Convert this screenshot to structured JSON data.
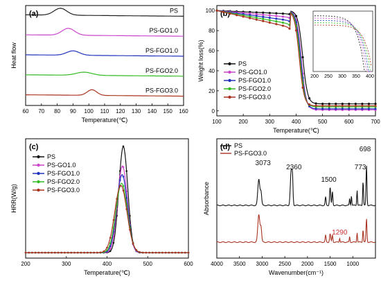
{
  "chart_data": [
    {
      "panel": "(a)",
      "type": "line",
      "ylabel": "Heat flow",
      "xlabel": "Temperature(℃)",
      "xlim": [
        60,
        160
      ],
      "xticks": [
        60,
        70,
        80,
        90,
        100,
        110,
        120,
        130,
        140,
        150,
        160
      ],
      "series": [
        {
          "name": "PS",
          "color": "#222222",
          "baseline": 0.9,
          "peak_x": 82,
          "peak_h": 0.55,
          "width": 4
        },
        {
          "name": "PS-GO1.0",
          "color": "#cc44cc",
          "baseline": 0.7,
          "peak_x": 87,
          "peak_h": 0.55,
          "width": 4
        },
        {
          "name": "PS-FGO1.0",
          "color": "#2233bb",
          "baseline": 0.5,
          "peak_x": 90,
          "peak_h": 0.35,
          "width": 4
        },
        {
          "name": "PS-FGO2.0",
          "color": "#33bb22",
          "baseline": 0.3,
          "peak_x": 97,
          "peak_h": 0.25,
          "width": 5
        },
        {
          "name": "PS-FGO3.0",
          "color": "#aa3322",
          "baseline": 0.1,
          "peak_x": 102,
          "peak_h": 0.45,
          "width": 3
        }
      ]
    },
    {
      "panel": "(b)",
      "type": "line",
      "ylabel": "Weight loss(%)",
      "xlabel": "Temperature(℃)",
      "xlim": [
        100,
        700
      ],
      "ylim": [
        -5,
        105
      ],
      "xticks": [
        100,
        200,
        300,
        400,
        500,
        600,
        700
      ],
      "yticks": [
        0,
        20,
        40,
        60,
        80,
        100
      ],
      "inset_xticks": [
        200,
        250,
        300,
        350,
        400
      ],
      "series": [
        {
          "name": "PS",
          "color": "#111111",
          "onset": 425,
          "residual": 7
        },
        {
          "name": "PS-GO1.0",
          "color": "#cc44cc",
          "onset": 420,
          "residual": 1
        },
        {
          "name": "PS-FGO1.0",
          "color": "#2233bb",
          "onset": 418,
          "residual": 2
        },
        {
          "name": "PS-FGO2.0",
          "color": "#33bb22",
          "onset": 415,
          "residual": 4
        },
        {
          "name": "PS-FGO3.0",
          "color": "#aa3322",
          "onset": 412,
          "residual": 5
        }
      ]
    },
    {
      "panel": "(c)",
      "type": "line",
      "ylabel": "HRR(W/g)",
      "xlabel": "Temperature(℃)",
      "xlim": [
        200,
        600
      ],
      "ylim": [
        -50,
        1050
      ],
      "xticks": [
        200,
        300,
        400,
        500,
        600
      ],
      "series": [
        {
          "name": "PS",
          "color": "#111111",
          "peak_x": 440,
          "peak_y": 980
        },
        {
          "name": "PS-GO1.0",
          "color": "#cc44cc",
          "peak_x": 438,
          "peak_y": 800
        },
        {
          "name": "PS-FGO1.0",
          "color": "#2233bb",
          "peak_x": 437,
          "peak_y": 720
        },
        {
          "name": "PS-FGO2.0",
          "color": "#33bb22",
          "peak_x": 436,
          "peak_y": 640
        },
        {
          "name": "PS-FGO3.0",
          "color": "#aa3322",
          "peak_x": 434,
          "peak_y": 620
        }
      ]
    },
    {
      "panel": "(d)",
      "type": "line",
      "ylabel": "Absorbance",
      "xlabel": "Wavenumber(cm⁻¹)",
      "xlim": [
        4000,
        500
      ],
      "xticks": [
        4000,
        3500,
        3000,
        2500,
        2000,
        1500,
        1000
      ],
      "series": [
        {
          "name": "PS",
          "color": "#111111"
        },
        {
          "name": "PS-FGO3.0",
          "color": "#aa3322"
        }
      ],
      "annotations": [
        {
          "text": "3073",
          "x": 3073,
          "color": "#111111"
        },
        {
          "text": "2360",
          "x": 2360,
          "color": "#111111"
        },
        {
          "text": "1500",
          "x": 1500,
          "color": "#111111"
        },
        {
          "text": "773",
          "x": 773,
          "color": "#111111"
        },
        {
          "text": "698",
          "x": 698,
          "color": "#111111"
        },
        {
          "text": "1290",
          "x": 1290,
          "color": "#cc3333"
        }
      ]
    }
  ]
}
